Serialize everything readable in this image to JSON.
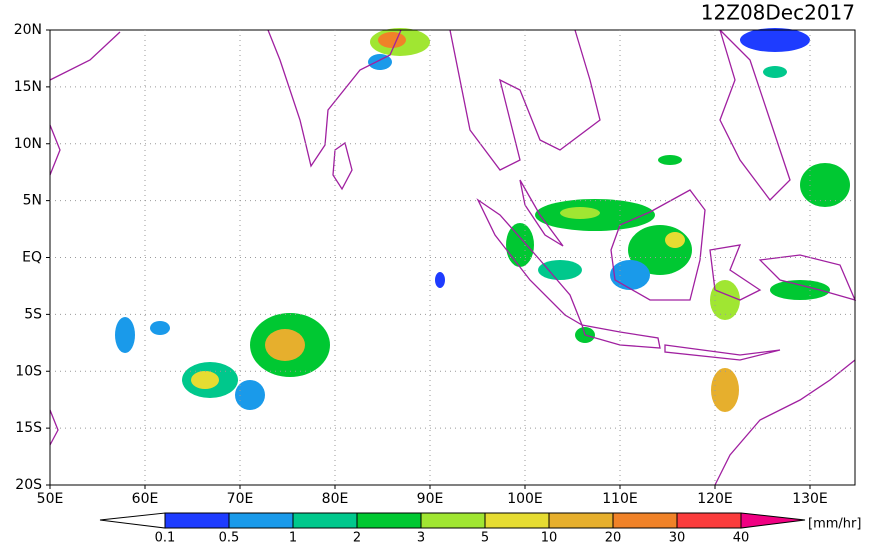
{
  "title": "12Z08Dec2017",
  "map": {
    "lat_labels": [
      "20N",
      "15N",
      "10N",
      "5N",
      "EQ",
      "5S",
      "10S",
      "15S",
      "20S"
    ],
    "lon_labels": [
      "50E",
      "60E",
      "70E",
      "80E",
      "90E",
      "100E",
      "110E",
      "120E",
      "130E"
    ]
  },
  "colorbar": {
    "labels": [
      "0.1",
      "0.5",
      "1",
      "2",
      "3",
      "5",
      "10",
      "20",
      "30",
      "40"
    ],
    "colors": [
      "#1e3cff",
      "#1a9aea",
      "#00c88c",
      "#00c832",
      "#a0e632",
      "#e6dc32",
      "#e6af2d",
      "#f08228",
      "#fa3c3c",
      "#f00082"
    ],
    "unit": "[mm/hr]"
  }
}
